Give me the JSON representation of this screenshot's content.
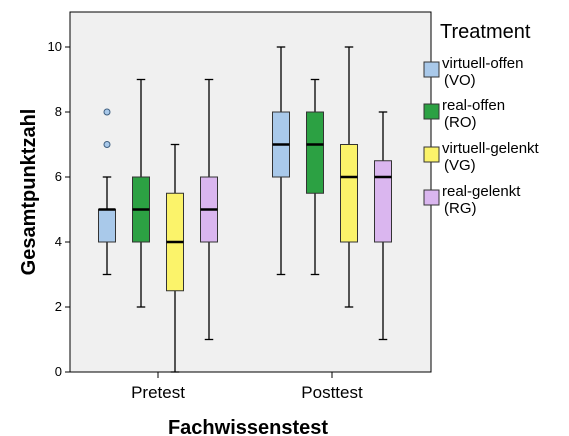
{
  "chart_data": {
    "type": "box",
    "title": "",
    "xlabel": "Fachwissenstest",
    "ylabel": "Gesamtpunktzahl",
    "ylim": [
      0,
      11
    ],
    "yticks": [
      "0",
      "2",
      "4",
      "6",
      "8",
      "10"
    ],
    "categories": [
      "Pretest",
      "Posttest"
    ],
    "grid": false,
    "legend": {
      "title": "Treatment",
      "placement": "right",
      "entries": [
        {
          "line1": "virtuell-offen",
          "line2": "(VO)",
          "color": "#a9c9ea"
        },
        {
          "line1": "real-offen",
          "line2": "(RO)",
          "color": "#2ca143"
        },
        {
          "line1": "virtuell-gelenkt",
          "line2": "(VG)",
          "color": "#fbf36a"
        },
        {
          "line1": "real-gelenkt",
          "line2": "(RG)",
          "color": "#dab6ef"
        }
      ]
    },
    "series": [
      {
        "name": "virtuell-offen (VO)",
        "color": "#a9c9ea",
        "boxes": [
          {
            "category": "Pretest",
            "min": 3,
            "q1": 4,
            "median": 5,
            "q3": 5,
            "max": 6,
            "outliers": [
              7,
              8
            ]
          },
          {
            "category": "Posttest",
            "min": 3,
            "q1": 6,
            "median": 7,
            "q3": 8,
            "max": 10,
            "outliers": []
          }
        ]
      },
      {
        "name": "real-offen (RO)",
        "color": "#2ca143",
        "boxes": [
          {
            "category": "Pretest",
            "min": 2,
            "q1": 4,
            "median": 5,
            "q3": 6,
            "max": 9,
            "outliers": []
          },
          {
            "category": "Posttest",
            "min": 3,
            "q1": 5.5,
            "median": 7,
            "q3": 8,
            "max": 9,
            "outliers": []
          }
        ]
      },
      {
        "name": "virtuell-gelenkt (VG)",
        "color": "#fbf36a",
        "boxes": [
          {
            "category": "Pretest",
            "min": 0,
            "q1": 2.5,
            "median": 4,
            "q3": 5.5,
            "max": 7,
            "outliers": []
          },
          {
            "category": "Posttest",
            "min": 2,
            "q1": 4,
            "median": 6,
            "q3": 7,
            "max": 10,
            "outliers": []
          }
        ]
      },
      {
        "name": "real-gelenkt (RG)",
        "color": "#dab6ef",
        "boxes": [
          {
            "category": "Pretest",
            "min": 1,
            "q1": 4,
            "median": 5,
            "q3": 6,
            "max": 9,
            "outliers": []
          },
          {
            "category": "Posttest",
            "min": 1,
            "q1": 4,
            "median": 6,
            "q3": 6.5,
            "max": 8,
            "outliers": []
          }
        ]
      }
    ]
  }
}
